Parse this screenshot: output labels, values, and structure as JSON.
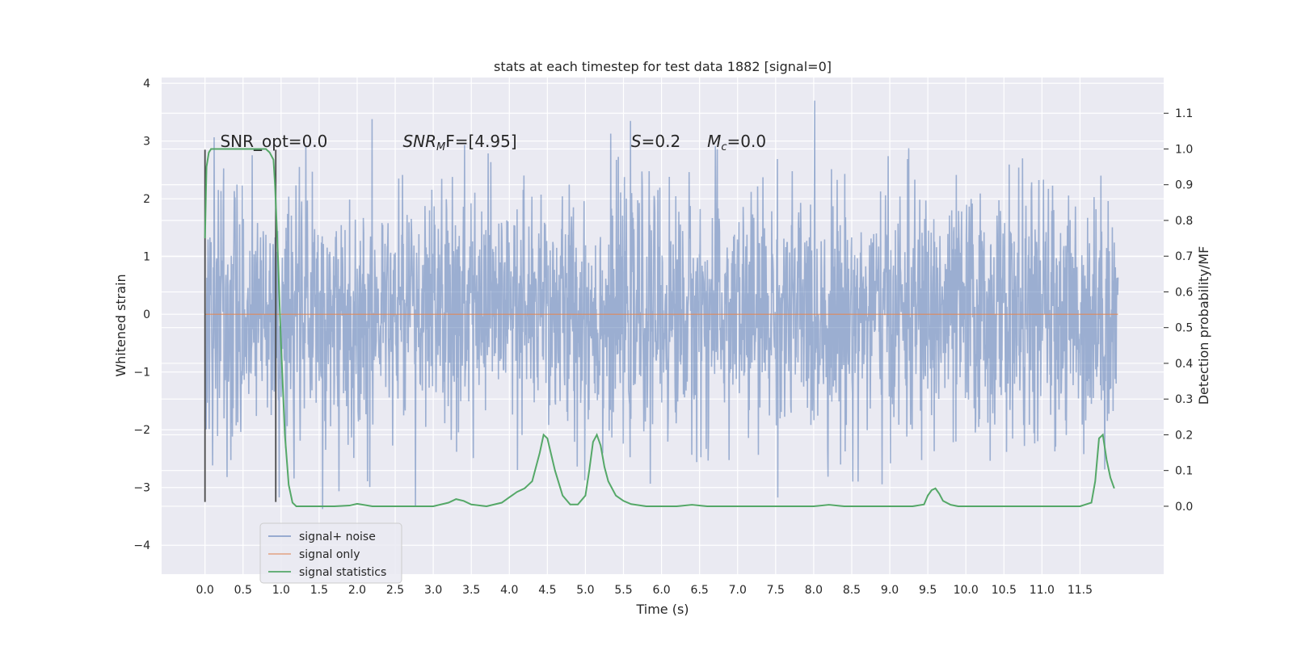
{
  "chart_data": {
    "type": "line",
    "title": "stats at each timestep for test data 1882 [signal=0]",
    "xlabel": "Time (s)",
    "ylabel": "Whitened strain",
    "y2label": "Detection probability/MF",
    "xlim": [
      -0.57,
      12.6
    ],
    "ylim": [
      -4.5,
      4.1
    ],
    "y2lim": [
      -0.19,
      1.2
    ],
    "x_ticks": [
      "0.0",
      "0.5",
      "1.0",
      "1.5",
      "2.0",
      "2.5",
      "3.0",
      "3.5",
      "4.0",
      "4.5",
      "5.0",
      "5.5",
      "6.0",
      "6.5",
      "7.0",
      "7.5",
      "8.0",
      "8.5",
      "9.0",
      "9.5",
      "10.0",
      "10.5",
      "11.0",
      "11.5"
    ],
    "y_ticks": [
      "4",
      "3",
      "2",
      "1",
      "0",
      "−1",
      "−2",
      "−3",
      "−4"
    ],
    "y2_ticks": [
      "1.1",
      "1.0",
      "0.9",
      "0.8",
      "0.7",
      "0.6",
      "0.5",
      "0.4",
      "0.3",
      "0.2",
      "0.1",
      "0.0"
    ],
    "grid": true,
    "legend_position": "lower-left",
    "series": [
      {
        "name": "signal+ noise",
        "color": "#4c72b0",
        "axis": "left",
        "description_range": [
          -3.5,
          3.5
        ],
        "x_range": [
          0.0,
          12.0
        ]
      },
      {
        "name": "signal only",
        "color": "#dd8452",
        "axis": "left",
        "constant_value": 0.0,
        "x_range": [
          0.0,
          12.0
        ]
      },
      {
        "name": "signal statistics",
        "color": "#55a868",
        "axis": "right",
        "x": [
          0.0,
          0.02,
          0.05,
          0.08,
          0.1,
          0.15,
          0.2,
          0.3,
          0.5,
          0.7,
          0.75,
          0.8,
          0.85,
          0.9,
          0.92,
          0.95,
          1.0,
          1.05,
          1.1,
          1.15,
          1.2,
          1.25,
          1.3,
          1.5,
          1.7,
          1.9,
          2.0,
          2.2,
          2.5,
          2.8,
          3.0,
          3.2,
          3.3,
          3.4,
          3.5,
          3.7,
          3.9,
          4.0,
          4.1,
          4.2,
          4.3,
          4.4,
          4.45,
          4.5,
          4.6,
          4.7,
          4.8,
          4.9,
          5.0,
          5.05,
          5.1,
          5.15,
          5.2,
          5.25,
          5.3,
          5.4,
          5.5,
          5.6,
          5.8,
          6.0,
          6.2,
          6.4,
          6.6,
          6.8,
          7.0,
          7.5,
          8.0,
          8.2,
          8.4,
          8.8,
          9.0,
          9.3,
          9.45,
          9.5,
          9.55,
          9.6,
          9.65,
          9.7,
          9.8,
          9.9,
          10.0,
          10.5,
          11.0,
          11.5,
          11.65,
          11.7,
          11.75,
          11.8,
          11.85,
          11.9,
          11.95
        ],
        "y": [
          0.75,
          0.95,
          0.99,
          1.0,
          1.0,
          1.0,
          1.0,
          1.0,
          1.0,
          1.0,
          1.0,
          1.0,
          0.99,
          0.97,
          0.9,
          0.75,
          0.45,
          0.2,
          0.06,
          0.01,
          0.0,
          0.0,
          0.0,
          0.0,
          0.0,
          0.002,
          0.007,
          0.0,
          0.0,
          0.0,
          0.0,
          0.01,
          0.02,
          0.015,
          0.005,
          0.0,
          0.01,
          0.025,
          0.04,
          0.05,
          0.07,
          0.15,
          0.2,
          0.19,
          0.1,
          0.03,
          0.005,
          0.005,
          0.03,
          0.1,
          0.18,
          0.2,
          0.17,
          0.11,
          0.07,
          0.03,
          0.015,
          0.006,
          0.0,
          0.0,
          0.0,
          0.004,
          0.0,
          0.0,
          0.0,
          0.0,
          0.0,
          0.004,
          0.0,
          0.0,
          0.0,
          0.0,
          0.005,
          0.03,
          0.045,
          0.05,
          0.035,
          0.015,
          0.004,
          0.0,
          0.0,
          0.0,
          0.0,
          0.0,
          0.01,
          0.07,
          0.19,
          0.2,
          0.13,
          0.08,
          0.05
        ]
      }
    ],
    "vlines": [
      0.0,
      0.93
    ],
    "annotations": [
      {
        "text": "SNR_opt=0.0",
        "x": 0.2,
        "y": 2.9,
        "axis": "left"
      },
      {
        "text": "SNR",
        "sub": "M",
        "after": "F=[4.95]",
        "x": 2.6,
        "y": 2.9,
        "axis": "left",
        "italic": true
      },
      {
        "text": "S",
        "after": "=0.2",
        "x": 5.6,
        "y": 2.9,
        "axis": "left",
        "italic": true
      },
      {
        "text": "M",
        "sub": "c",
        "after": "=0.0",
        "x": 6.6,
        "y": 2.9,
        "axis": "left",
        "italic": true
      }
    ]
  }
}
